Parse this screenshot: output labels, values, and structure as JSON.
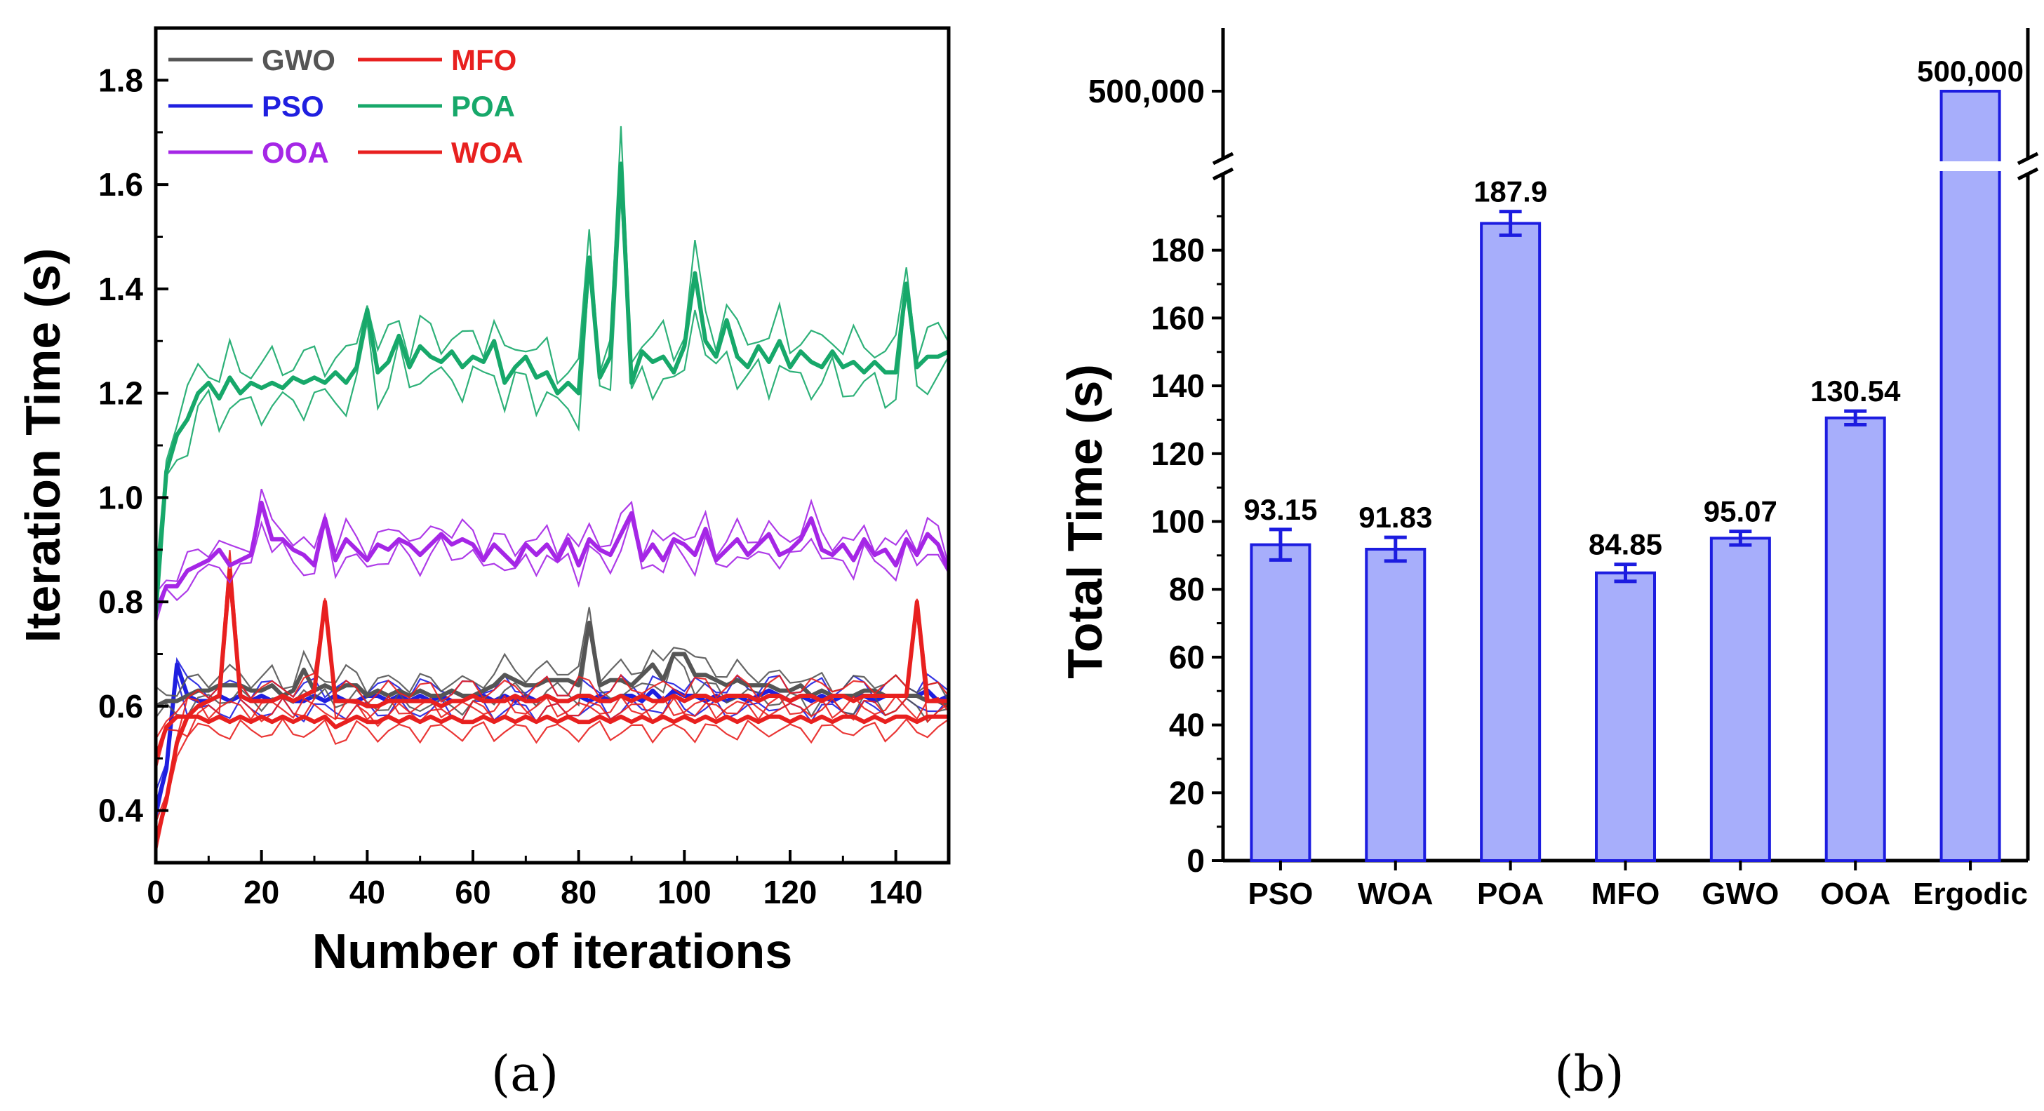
{
  "chart_data": [
    {
      "type": "line",
      "panel_caption": "(a)",
      "xlabel": "Number of iterations",
      "ylabel": "Iteration Time (s)",
      "xlim": [
        0,
        150
      ],
      "ylim": [
        0.3,
        1.9
      ],
      "xticks": [
        "0",
        "20",
        "40",
        "60",
        "80",
        "100",
        "120",
        "140"
      ],
      "yticks": [
        "0.4",
        "0.6",
        "0.8",
        "1.0",
        "1.2",
        "1.4",
        "1.6",
        "1.8"
      ],
      "legend_position": "top-left",
      "series": [
        {
          "name": "GWO",
          "color": "#555555",
          "x": [
            0,
            2,
            4,
            6,
            8,
            10,
            12,
            14,
            16,
            18,
            20,
            22,
            24,
            26,
            28,
            30,
            32,
            34,
            36,
            38,
            40,
            42,
            44,
            46,
            48,
            50,
            52,
            54,
            56,
            58,
            60,
            62,
            64,
            66,
            68,
            70,
            72,
            74,
            76,
            78,
            80,
            82,
            84,
            86,
            88,
            90,
            92,
            94,
            96,
            98,
            100,
            102,
            104,
            106,
            108,
            110,
            112,
            114,
            116,
            118,
            120,
            122,
            124,
            126,
            128,
            130,
            132,
            134,
            136,
            138,
            140,
            142,
            144,
            146,
            148,
            150
          ],
          "y": [
            0.6,
            0.61,
            0.61,
            0.62,
            0.63,
            0.63,
            0.64,
            0.64,
            0.64,
            0.63,
            0.63,
            0.64,
            0.62,
            0.63,
            0.67,
            0.63,
            0.64,
            0.63,
            0.64,
            0.64,
            0.62,
            0.63,
            0.62,
            0.63,
            0.62,
            0.63,
            0.62,
            0.62,
            0.63,
            0.62,
            0.62,
            0.63,
            0.64,
            0.66,
            0.65,
            0.64,
            0.64,
            0.65,
            0.65,
            0.65,
            0.64,
            0.76,
            0.64,
            0.65,
            0.65,
            0.64,
            0.66,
            0.68,
            0.65,
            0.7,
            0.7,
            0.66,
            0.66,
            0.65,
            0.64,
            0.65,
            0.64,
            0.64,
            0.64,
            0.63,
            0.63,
            0.64,
            0.62,
            0.63,
            0.62,
            0.62,
            0.62,
            0.63,
            0.63,
            0.62,
            0.62,
            0.62,
            0.62,
            0.61,
            0.61,
            0.6
          ]
        },
        {
          "name": "MFO",
          "color": "#e8201f",
          "x": [
            0,
            2,
            4,
            6,
            8,
            10,
            12,
            14,
            16,
            18,
            20,
            22,
            24,
            26,
            28,
            30,
            32,
            34,
            36,
            38,
            40,
            42,
            44,
            46,
            48,
            50,
            52,
            54,
            56,
            58,
            60,
            62,
            64,
            66,
            68,
            70,
            72,
            74,
            76,
            78,
            80,
            82,
            84,
            86,
            88,
            90,
            92,
            94,
            96,
            98,
            100,
            102,
            104,
            106,
            108,
            110,
            112,
            114,
            116,
            118,
            120,
            122,
            124,
            126,
            128,
            130,
            132,
            134,
            136,
            138,
            140,
            142,
            144,
            146,
            148,
            150
          ],
          "y": [
            0.34,
            0.42,
            0.53,
            0.58,
            0.6,
            0.61,
            0.62,
            0.86,
            0.62,
            0.61,
            0.61,
            0.61,
            0.62,
            0.61,
            0.62,
            0.63,
            0.8,
            0.61,
            0.61,
            0.61,
            0.6,
            0.6,
            0.61,
            0.61,
            0.61,
            0.61,
            0.61,
            0.6,
            0.61,
            0.61,
            0.62,
            0.61,
            0.61,
            0.61,
            0.62,
            0.61,
            0.61,
            0.62,
            0.61,
            0.61,
            0.62,
            0.62,
            0.61,
            0.61,
            0.62,
            0.61,
            0.62,
            0.61,
            0.61,
            0.62,
            0.61,
            0.62,
            0.62,
            0.61,
            0.62,
            0.62,
            0.62,
            0.61,
            0.62,
            0.62,
            0.61,
            0.62,
            0.62,
            0.61,
            0.62,
            0.62,
            0.61,
            0.62,
            0.62,
            0.62,
            0.62,
            0.62,
            0.8,
            0.61,
            0.61,
            0.61
          ]
        },
        {
          "name": "PSO",
          "color": "#1f1fe0",
          "x": [
            0,
            2,
            4,
            6,
            8,
            10,
            12,
            14,
            16,
            18,
            20,
            22,
            24,
            26,
            28,
            30,
            32,
            34,
            36,
            38,
            40,
            42,
            44,
            46,
            48,
            50,
            52,
            54,
            56,
            58,
            60,
            62,
            64,
            66,
            68,
            70,
            72,
            74,
            76,
            78,
            80,
            82,
            84,
            86,
            88,
            90,
            92,
            94,
            96,
            98,
            100,
            102,
            104,
            106,
            108,
            110,
            112,
            114,
            116,
            118,
            120,
            122,
            124,
            126,
            128,
            130,
            132,
            134,
            136,
            138,
            140,
            142,
            144,
            146,
            148,
            150
          ],
          "y": [
            0.4,
            0.48,
            0.68,
            0.62,
            0.61,
            0.61,
            0.62,
            0.61,
            0.62,
            0.61,
            0.62,
            0.61,
            0.62,
            0.61,
            0.61,
            0.62,
            0.61,
            0.62,
            0.61,
            0.61,
            0.62,
            0.62,
            0.61,
            0.62,
            0.61,
            0.62,
            0.61,
            0.62,
            0.61,
            0.61,
            0.62,
            0.62,
            0.61,
            0.62,
            0.61,
            0.62,
            0.61,
            0.62,
            0.61,
            0.61,
            0.62,
            0.61,
            0.62,
            0.61,
            0.62,
            0.62,
            0.61,
            0.63,
            0.61,
            0.63,
            0.62,
            0.62,
            0.61,
            0.62,
            0.61,
            0.62,
            0.61,
            0.62,
            0.63,
            0.62,
            0.61,
            0.62,
            0.61,
            0.62,
            0.61,
            0.62,
            0.62,
            0.62,
            0.61,
            0.62,
            0.62,
            0.62,
            0.62,
            0.63,
            0.61,
            0.62
          ]
        },
        {
          "name": "POA",
          "color": "#17a86a",
          "x": [
            0,
            2,
            4,
            6,
            8,
            10,
            12,
            14,
            16,
            18,
            20,
            22,
            24,
            26,
            28,
            30,
            32,
            34,
            36,
            38,
            40,
            42,
            44,
            46,
            48,
            50,
            52,
            54,
            56,
            58,
            60,
            62,
            64,
            66,
            68,
            70,
            72,
            74,
            76,
            78,
            80,
            82,
            84,
            86,
            88,
            90,
            92,
            94,
            96,
            98,
            100,
            102,
            104,
            106,
            108,
            110,
            112,
            114,
            116,
            118,
            120,
            122,
            124,
            126,
            128,
            130,
            132,
            134,
            136,
            138,
            140,
            142,
            144,
            146,
            148,
            150
          ],
          "y": [
            0.78,
            1.05,
            1.12,
            1.15,
            1.2,
            1.22,
            1.19,
            1.23,
            1.2,
            1.22,
            1.21,
            1.22,
            1.21,
            1.23,
            1.22,
            1.23,
            1.22,
            1.24,
            1.22,
            1.25,
            1.36,
            1.24,
            1.26,
            1.31,
            1.25,
            1.29,
            1.27,
            1.26,
            1.28,
            1.25,
            1.27,
            1.26,
            1.3,
            1.22,
            1.25,
            1.27,
            1.23,
            1.24,
            1.2,
            1.22,
            1.2,
            1.46,
            1.23,
            1.27,
            1.64,
            1.22,
            1.28,
            1.26,
            1.27,
            1.24,
            1.29,
            1.43,
            1.3,
            1.27,
            1.34,
            1.27,
            1.25,
            1.29,
            1.26,
            1.3,
            1.25,
            1.28,
            1.26,
            1.25,
            1.28,
            1.25,
            1.26,
            1.24,
            1.26,
            1.24,
            1.24,
            1.41,
            1.25,
            1.27,
            1.27,
            1.28
          ]
        },
        {
          "name": "OOA",
          "color": "#a526e6",
          "x": [
            0,
            2,
            4,
            6,
            8,
            10,
            12,
            14,
            16,
            18,
            20,
            22,
            24,
            26,
            28,
            30,
            32,
            34,
            36,
            38,
            40,
            42,
            44,
            46,
            48,
            50,
            52,
            54,
            56,
            58,
            60,
            62,
            64,
            66,
            68,
            70,
            72,
            74,
            76,
            78,
            80,
            82,
            84,
            86,
            88,
            90,
            92,
            94,
            96,
            98,
            100,
            102,
            104,
            106,
            108,
            110,
            112,
            114,
            116,
            118,
            120,
            122,
            124,
            126,
            128,
            130,
            132,
            134,
            136,
            138,
            140,
            142,
            144,
            146,
            148,
            150
          ],
          "y": [
            0.78,
            0.83,
            0.83,
            0.86,
            0.87,
            0.88,
            0.9,
            0.87,
            0.88,
            0.89,
            0.99,
            0.92,
            0.92,
            0.9,
            0.89,
            0.87,
            0.96,
            0.88,
            0.92,
            0.9,
            0.88,
            0.91,
            0.9,
            0.92,
            0.91,
            0.89,
            0.91,
            0.93,
            0.91,
            0.92,
            0.91,
            0.88,
            0.91,
            0.89,
            0.87,
            0.91,
            0.89,
            0.91,
            0.88,
            0.92,
            0.87,
            0.92,
            0.9,
            0.89,
            0.93,
            0.97,
            0.88,
            0.91,
            0.88,
            0.92,
            0.91,
            0.89,
            0.94,
            0.88,
            0.9,
            0.92,
            0.89,
            0.91,
            0.93,
            0.89,
            0.9,
            0.92,
            0.96,
            0.9,
            0.89,
            0.91,
            0.88,
            0.92,
            0.89,
            0.9,
            0.87,
            0.92,
            0.89,
            0.93,
            0.91,
            0.86
          ]
        },
        {
          "name": "WOA",
          "color": "#e8201f",
          "x": [
            0,
            2,
            4,
            6,
            8,
            10,
            12,
            14,
            16,
            18,
            20,
            22,
            24,
            26,
            28,
            30,
            32,
            34,
            36,
            38,
            40,
            42,
            44,
            46,
            48,
            50,
            52,
            54,
            56,
            58,
            60,
            62,
            64,
            66,
            68,
            70,
            72,
            74,
            76,
            78,
            80,
            82,
            84,
            86,
            88,
            90,
            92,
            94,
            96,
            98,
            100,
            102,
            104,
            106,
            108,
            110,
            112,
            114,
            116,
            118,
            120,
            122,
            124,
            126,
            128,
            130,
            132,
            134,
            136,
            138,
            140,
            142,
            144,
            146,
            148,
            150
          ],
          "y": [
            0.5,
            0.56,
            0.58,
            0.58,
            0.58,
            0.57,
            0.58,
            0.57,
            0.58,
            0.57,
            0.58,
            0.57,
            0.58,
            0.57,
            0.58,
            0.57,
            0.58,
            0.56,
            0.57,
            0.58,
            0.57,
            0.57,
            0.58,
            0.57,
            0.58,
            0.57,
            0.58,
            0.57,
            0.58,
            0.57,
            0.57,
            0.58,
            0.57,
            0.58,
            0.57,
            0.58,
            0.57,
            0.58,
            0.57,
            0.58,
            0.57,
            0.57,
            0.58,
            0.57,
            0.58,
            0.57,
            0.58,
            0.57,
            0.58,
            0.57,
            0.58,
            0.57,
            0.58,
            0.57,
            0.58,
            0.57,
            0.58,
            0.57,
            0.58,
            0.58,
            0.57,
            0.58,
            0.57,
            0.58,
            0.57,
            0.58,
            0.58,
            0.57,
            0.58,
            0.57,
            0.58,
            0.58,
            0.57,
            0.58,
            0.58,
            0.58
          ]
        }
      ]
    },
    {
      "type": "bar",
      "panel_caption": "(b)",
      "ylabel": "Total Time (s)",
      "xlabel": "",
      "categories": [
        "PSO",
        "WOA",
        "POA",
        "MFO",
        "GWO",
        "OOA",
        "Ergodic"
      ],
      "values": [
        93.15,
        91.83,
        187.9,
        84.85,
        95.07,
        130.54,
        500000
      ],
      "value_labels": [
        "93.15",
        "91.83",
        "187.9",
        "84.85",
        "95.07",
        "130.54",
        "500,000"
      ],
      "error": [
        4.5,
        3.5,
        3.5,
        2.5,
        2.0,
        2.0,
        0
      ],
      "ylim_lower": [
        0,
        200
      ],
      "yticks_lower": [
        "0",
        "20",
        "40",
        "60",
        "80",
        "100",
        "120",
        "140",
        "160",
        "180"
      ],
      "ytick_upper": "500,000",
      "broken_axis": true,
      "bar_color": "#a7aefb",
      "bar_edge_color": "#1c1ce0",
      "error_color": "#1c1ce0"
    }
  ]
}
